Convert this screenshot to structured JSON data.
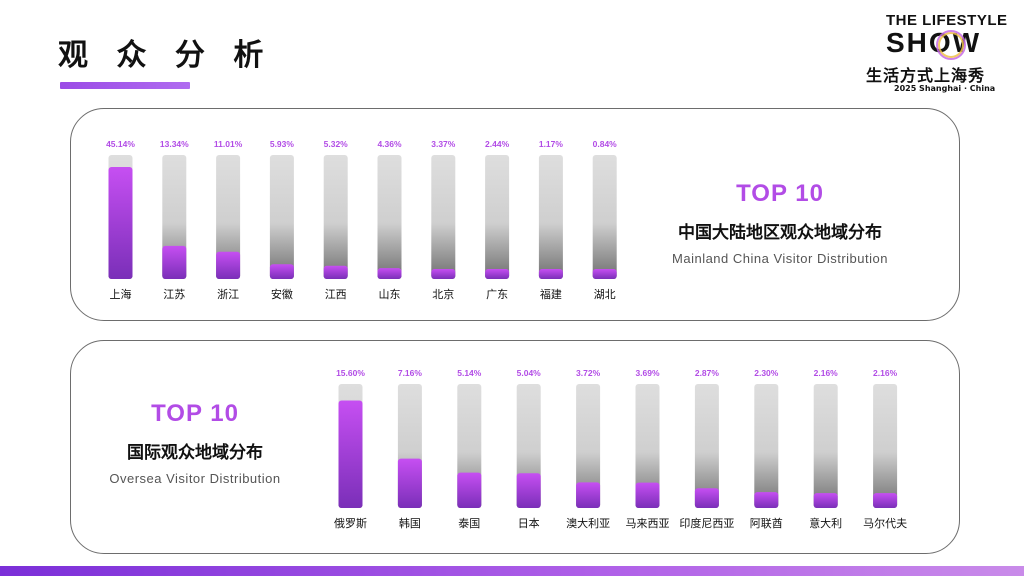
{
  "page": {
    "title": "观 众 分 析"
  },
  "logo": {
    "line1": "THE LIFESTYLE",
    "line2": "SHOW",
    "line3": "生活方式上海秀",
    "line4": "2025 Shanghai · China"
  },
  "colors": {
    "accent": "#b24ce6",
    "bar_fill_top": "#c04cf0",
    "bar_fill_bottom": "#7a2fb8",
    "track": "#d2d2d2"
  },
  "mainland": {
    "top_label": "TOP 10",
    "title_cn": "中国大陆地区观众地域分布",
    "title_en": "Mainland China Visitor Distribution"
  },
  "oversea": {
    "top_label": "TOP 10",
    "title_cn": "国际观众地域分布",
    "title_en": "Oversea Visitor Distribution"
  },
  "chart_data": [
    {
      "type": "bar",
      "categories": [
        "上海",
        "江苏",
        "浙江",
        "安徽",
        "江西",
        "山东",
        "北京",
        "广东",
        "福建",
        "湖北"
      ],
      "values": [
        45.14,
        13.34,
        11.01,
        5.93,
        5.32,
        4.36,
        3.37,
        2.44,
        1.17,
        0.84
      ],
      "value_labels": [
        "45.14%",
        "13.34%",
        "11.01%",
        "5.93%",
        "5.32%",
        "4.36%",
        "3.37%",
        "2.44%",
        "1.17%",
        "0.84%"
      ],
      "ylim": [
        0,
        50
      ],
      "grid": false
    },
    {
      "type": "bar",
      "categories": [
        "俄罗斯",
        "韩国",
        "泰国",
        "日本",
        "澳大利亚",
        "马来西亚",
        "印度尼西亚",
        "阿联酋",
        "意大利",
        "马尔代夫"
      ],
      "values": [
        15.6,
        7.16,
        5.14,
        5.04,
        3.72,
        3.69,
        2.87,
        2.3,
        2.16,
        2.16
      ],
      "value_labels": [
        "15.60%",
        "7.16%",
        "5.14%",
        "5.04%",
        "3.72%",
        "3.69%",
        "2.87%",
        "2.30%",
        "2.16%",
        "2.16%"
      ],
      "ylim": [
        0,
        18
      ],
      "grid": false
    }
  ]
}
